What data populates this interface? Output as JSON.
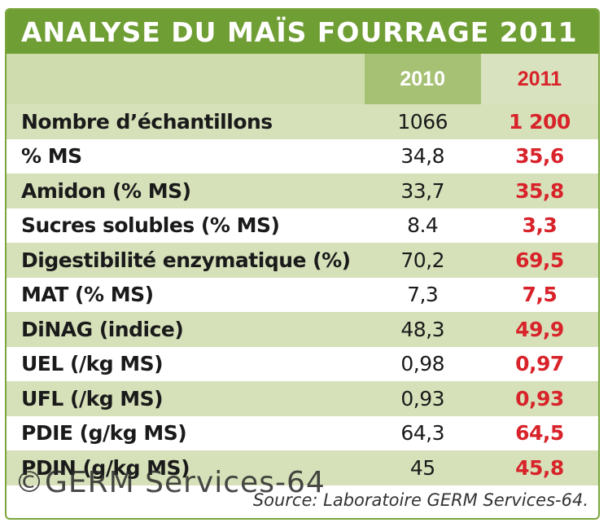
{
  "title": "ANALYSE DU MAÏS FOURRAGE 2011",
  "columns": {
    "col_2010": "2010",
    "col_2011": "2011"
  },
  "rows": [
    {
      "label": "Nombre d’échantillons",
      "v2010": "1066",
      "v2011": "1 200"
    },
    {
      "label": "% MS",
      "v2010": "34,8",
      "v2011": "35,6"
    },
    {
      "label": "Amidon (% MS)",
      "v2010": "33,7",
      "v2011": "35,8"
    },
    {
      "label": "Sucres solubles (% MS)",
      "v2010": "8.4",
      "v2011": "3,3"
    },
    {
      "label": "Digestibilité enzymatique (%)",
      "v2010": "70,2",
      "v2011": "69,5"
    },
    {
      "label": "MAT (% MS)",
      "v2010": "7,3",
      "v2011": "7,5"
    },
    {
      "label": "DiNAG (indice)",
      "v2010": "48,3",
      "v2011": "49,9"
    },
    {
      "label": "UEL (/kg MS)",
      "v2010": "0,98",
      "v2011": "0,97"
    },
    {
      "label": "UFL (/kg MS)",
      "v2010": "0,93",
      "v2011": "0,93"
    },
    {
      "label": "PDIE (g/kg MS)",
      "v2010": "64,3",
      "v2011": "64,5"
    },
    {
      "label": "PDIN (g/kg MS)",
      "v2010": "45",
      "v2011": "45,8"
    }
  ],
  "source": "Source: Laboratoire GERM Services-64.",
  "watermark": "©GERM Services-64",
  "colors": {
    "title_bg": "#6f9e34",
    "accent_red": "#d8232a",
    "row_alt": "#d6e1ba"
  }
}
